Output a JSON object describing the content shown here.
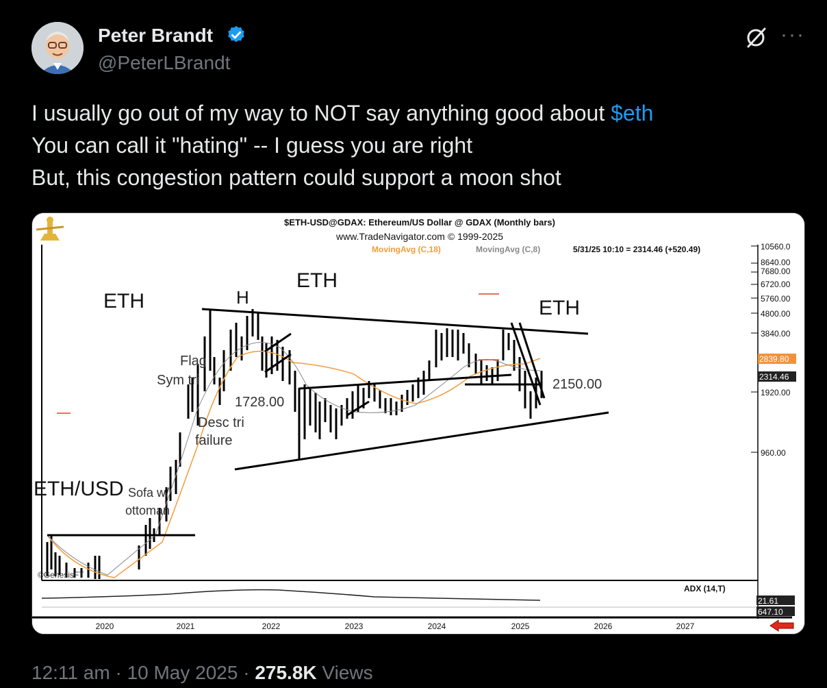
{
  "author": {
    "name": "Peter Brandt",
    "handle": "@PeterLBrandt"
  },
  "tweet": {
    "line1_prefix": "I usually go out of my way to NOT say anything good about ",
    "cashtag": "$eth",
    "line2": "You can call it \"hating\" -- I guess you are right",
    "line3": "But, this congestion pattern could support a moon shot"
  },
  "chart_data": {
    "type": "bar",
    "title": "$ETH-USD@GDAX: Ethereum/US Dollar @ GDAX  (Monthly bars)",
    "subtitle": "www.TradeNavigator.com © 1999-2025",
    "legend": [
      "MovingAvg (C,18)",
      "MovingAvg (C,8)"
    ],
    "last_bar_info": "5/31/25 10:10 = 2314.46 (+520.49)",
    "scale": "log",
    "y_ticks": [
      "10560.0",
      "8640.00",
      "7680.00",
      "6720.00",
      "5760.00",
      "4800.00",
      "3840.00",
      "2839.80",
      "2314.46",
      "1920.00",
      "960.00"
    ],
    "x_ticks": [
      "2020",
      "2021",
      "2022",
      "2023",
      "2024",
      "2025",
      "2026",
      "2027"
    ],
    "indicator_label": "ADX (14,T)",
    "indicator_values": [
      "21.61",
      "647.10"
    ],
    "annotations": {
      "eth1": "ETH",
      "eth2": "ETH",
      "eth3": "ETH",
      "h": "H",
      "flag": "Flag",
      "sym_tri": "Sym tri",
      "level_1728": "1728.00",
      "desc_tri": "Desc tri",
      "failure": "failure",
      "level_2150": "2150.00",
      "ethusd": "ETH/USD",
      "sofa": "Sofa w/",
      "ottoman": "ottoman",
      "genesis": "©GenesisFT"
    },
    "colors": {
      "ma18": "#f39c3a",
      "ma8": "#888888",
      "price_box_orange": "#f0923a"
    }
  },
  "meta": {
    "time": "12:11 am",
    "date": "10 May 2025",
    "views_count": "275.8K",
    "views_label": "Views"
  }
}
